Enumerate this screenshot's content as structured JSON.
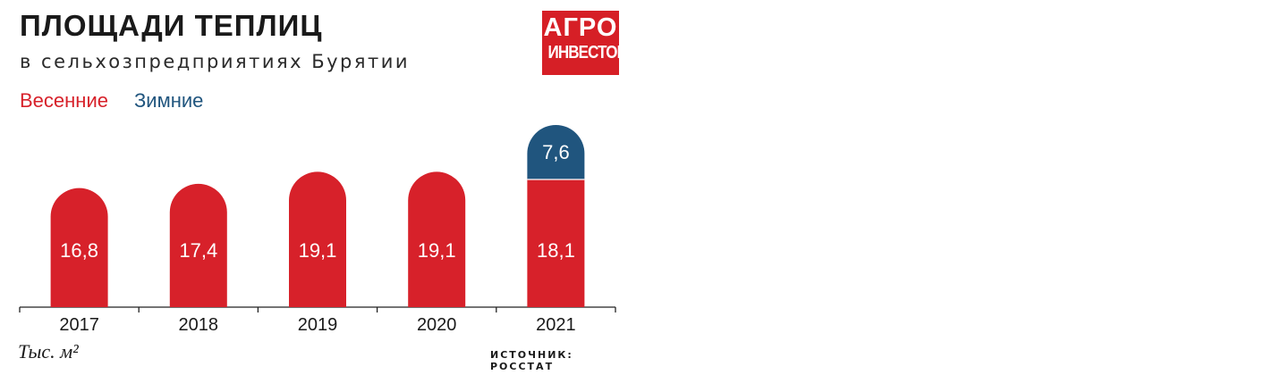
{
  "header": {
    "title": "ПЛОЩАДИ ТЕПЛИЦ",
    "subtitle": "в сельхозпредприятиях Бурятии"
  },
  "logo": {
    "line1": "АГРО",
    "line2": "ИНВЕСТОР"
  },
  "footer": {
    "unit": "Тыс. м²",
    "source": "ИСТОЧНИК: РОССТАТ"
  },
  "colors": {
    "spring": "#d7212a",
    "winter": "#20557e",
    "logo": "#d61f26"
  },
  "chart_data": {
    "type": "bar",
    "stacked": true,
    "categories": [
      "2017",
      "2018",
      "2019",
      "2020",
      "2021"
    ],
    "series": [
      {
        "name": "Весенние",
        "values": [
          16.8,
          17.4,
          19.1,
          19.1,
          18.1
        ]
      },
      {
        "name": "Зимние",
        "values": [
          0,
          0,
          0,
          0,
          7.6
        ]
      }
    ],
    "data_labels": [
      [
        "16,8",
        "17,4",
        "19,1",
        "19,1",
        "18,1"
      ],
      [
        "",
        "",
        "",
        "",
        "7,6"
      ]
    ],
    "legend": [
      "Весенние",
      "Зимние"
    ],
    "legend_position": "top-left",
    "ylabel": "Тыс. м²",
    "grid": false,
    "ylim": [
      0,
      25.7
    ]
  }
}
